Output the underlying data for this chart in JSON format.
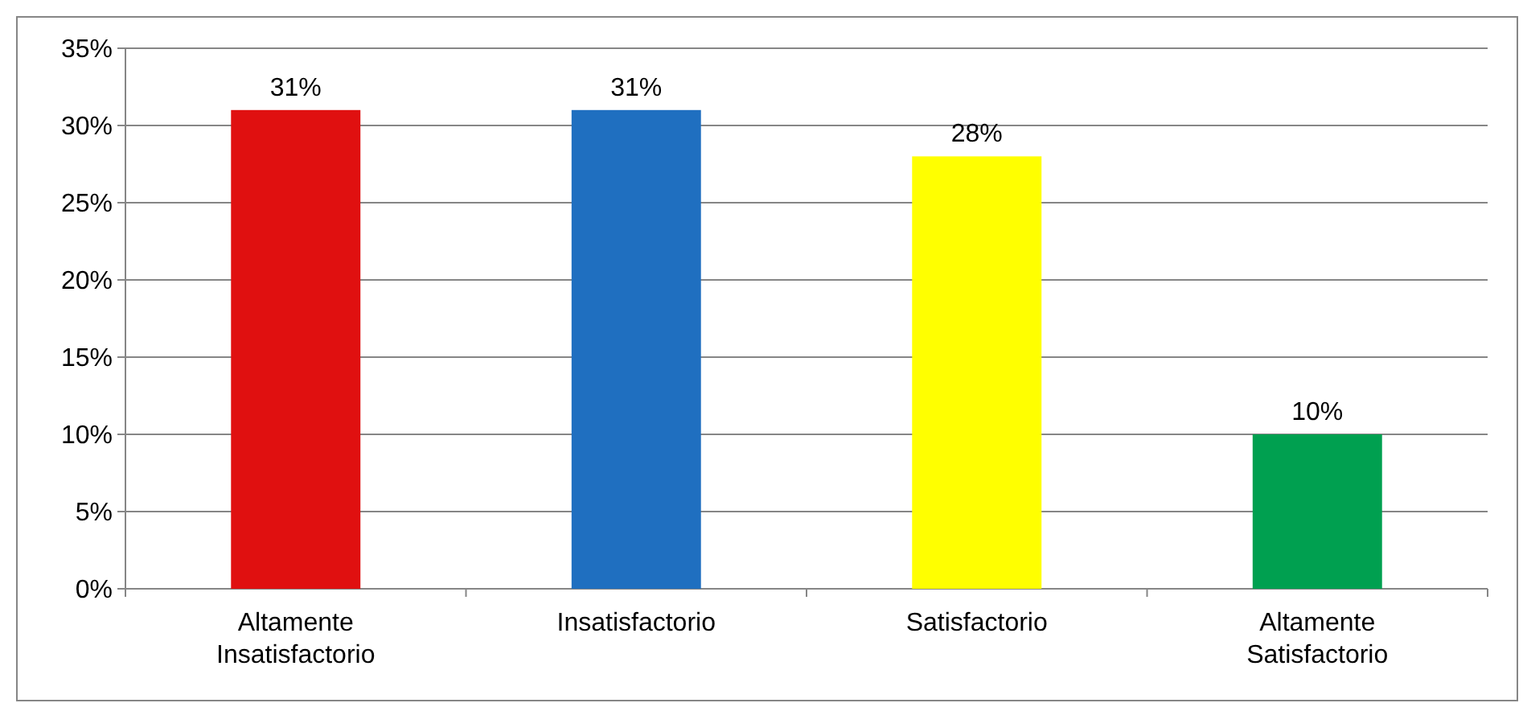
{
  "chart_data": {
    "type": "bar",
    "categories": [
      "Altamente Insatisfactorio",
      "Insatisfactorio",
      "Satisfactorio",
      "Altamente Satisfactorio"
    ],
    "values": [
      31,
      31,
      28,
      10
    ],
    "colors": [
      "#e01010",
      "#1f6fc0",
      "#ffff00",
      "#00a050"
    ],
    "value_labels": [
      "31%",
      "31%",
      "28%",
      "10%"
    ],
    "ylim": [
      0,
      35
    ],
    "yticks": [
      {
        "value": 0,
        "label": "0%"
      },
      {
        "value": 5,
        "label": "5%"
      },
      {
        "value": 10,
        "label": "10%"
      },
      {
        "value": 15,
        "label": "15%"
      },
      {
        "value": 20,
        "label": "20%"
      },
      {
        "value": 25,
        "label": "25%"
      },
      {
        "value": 30,
        "label": "30%"
      },
      {
        "value": 35,
        "label": "35%"
      }
    ],
    "grid": "y"
  }
}
